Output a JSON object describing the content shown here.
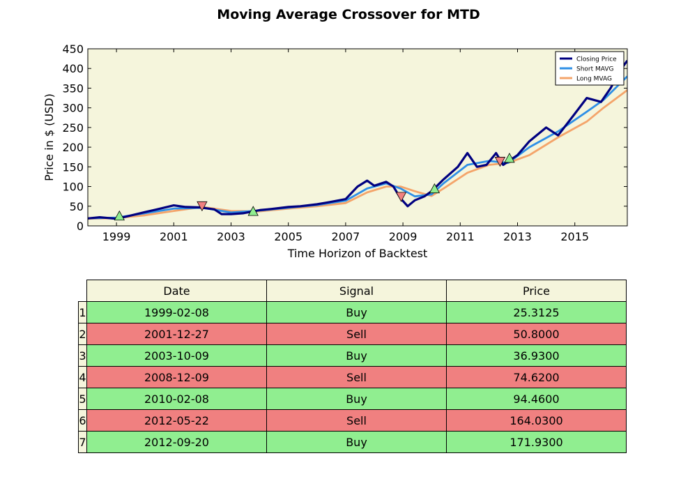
{
  "chart_data": [
    {
      "type": "line",
      "title": "Moving Average Crossover for MTD",
      "xlabel": "Time Horizon of Backtest",
      "ylabel": "Price in $ (USD)",
      "xlim": [
        "1998-01-01",
        "2016-10-31"
      ],
      "ylim": [
        0,
        450
      ],
      "x_ticks": [
        "1999",
        "2001",
        "2003",
        "2005",
        "2007",
        "2009",
        "2011",
        "2013",
        "2015"
      ],
      "y_ticks": [
        0,
        50,
        100,
        150,
        200,
        250,
        300,
        350,
        400,
        450
      ],
      "background": "#f5f5dc",
      "legend_position": "top-right",
      "series": [
        {
          "name": "Closing Price",
          "color": "#000080",
          "points": [
            [
              "1998-01-01",
              19
            ],
            [
              "1998-06-01",
              22
            ],
            [
              "1999-01-01",
              18
            ],
            [
              "1999-06-01",
              25
            ],
            [
              "2000-01-01",
              35
            ],
            [
              "2000-06-01",
              42
            ],
            [
              "2001-01-01",
              52
            ],
            [
              "2001-06-01",
              48
            ],
            [
              "2001-12-01",
              47
            ],
            [
              "2002-06-01",
              42
            ],
            [
              "2002-09-01",
              30
            ],
            [
              "2003-01-01",
              30
            ],
            [
              "2003-06-01",
              32
            ],
            [
              "2004-01-01",
              40
            ],
            [
              "2004-06-01",
              43
            ],
            [
              "2005-01-01",
              48
            ],
            [
              "2005-06-01",
              50
            ],
            [
              "2006-01-01",
              55
            ],
            [
              "2006-06-01",
              60
            ],
            [
              "2007-01-01",
              68
            ],
            [
              "2007-06-01",
              100
            ],
            [
              "2007-10-01",
              115
            ],
            [
              "2008-01-01",
              102
            ],
            [
              "2008-06-01",
              112
            ],
            [
              "2008-09-01",
              100
            ],
            [
              "2008-12-01",
              70
            ],
            [
              "2009-03-01",
              50
            ],
            [
              "2009-06-01",
              65
            ],
            [
              "2009-10-01",
              75
            ],
            [
              "2010-01-01",
              88
            ],
            [
              "2010-06-01",
              118
            ],
            [
              "2010-12-01",
              150
            ],
            [
              "2011-04-01",
              185
            ],
            [
              "2011-08-01",
              150
            ],
            [
              "2011-12-01",
              155
            ],
            [
              "2012-04-01",
              185
            ],
            [
              "2012-07-01",
              155
            ],
            [
              "2013-01-01",
              180
            ],
            [
              "2013-06-01",
              215
            ],
            [
              "2014-01-01",
              250
            ],
            [
              "2014-06-01",
              230
            ],
            [
              "2015-01-01",
              285
            ],
            [
              "2015-06-01",
              325
            ],
            [
              "2015-12-01",
              315
            ],
            [
              "2016-04-01",
              350
            ],
            [
              "2016-08-01",
              395
            ],
            [
              "2016-10-31",
              420
            ]
          ]
        },
        {
          "name": "Short MAVG",
          "color": "#2e8fe6",
          "points": [
            [
              "1998-01-01",
              19
            ],
            [
              "1999-01-01",
              21
            ],
            [
              "2000-01-01",
              32
            ],
            [
              "2001-01-01",
              44
            ],
            [
              "2002-01-01",
              46
            ],
            [
              "2003-01-01",
              34
            ],
            [
              "2004-01-01",
              39
            ],
            [
              "2005-01-01",
              46
            ],
            [
              "2006-01-01",
              53
            ],
            [
              "2007-01-01",
              64
            ],
            [
              "2007-10-01",
              95
            ],
            [
              "2008-06-01",
              108
            ],
            [
              "2008-12-01",
              95
            ],
            [
              "2009-06-01",
              75
            ],
            [
              "2010-01-01",
              80
            ],
            [
              "2010-06-01",
              108
            ],
            [
              "2011-04-01",
              155
            ],
            [
              "2012-01-01",
              165
            ],
            [
              "2012-09-01",
              160
            ],
            [
              "2013-06-01",
              200
            ],
            [
              "2014-06-01",
              240
            ],
            [
              "2015-06-01",
              290
            ],
            [
              "2016-01-01",
              320
            ],
            [
              "2016-10-31",
              380
            ]
          ]
        },
        {
          "name": "Long MVAG",
          "color": "#f4a46a",
          "points": [
            [
              "1998-01-01",
              18
            ],
            [
              "1999-01-01",
              20
            ],
            [
              "2000-01-01",
              27
            ],
            [
              "2001-01-01",
              38
            ],
            [
              "2002-01-01",
              48
            ],
            [
              "2003-01-01",
              38
            ],
            [
              "2004-01-01",
              37
            ],
            [
              "2005-01-01",
              44
            ],
            [
              "2006-01-01",
              50
            ],
            [
              "2007-01-01",
              58
            ],
            [
              "2007-10-01",
              85
            ],
            [
              "2008-06-01",
              100
            ],
            [
              "2008-12-01",
              100
            ],
            [
              "2009-06-01",
              88
            ],
            [
              "2010-01-01",
              76
            ],
            [
              "2010-06-01",
              95
            ],
            [
              "2011-04-01",
              135
            ],
            [
              "2012-01-01",
              155
            ],
            [
              "2012-09-01",
              160
            ],
            [
              "2013-06-01",
              180
            ],
            [
              "2014-06-01",
              225
            ],
            [
              "2015-06-01",
              265
            ],
            [
              "2016-01-01",
              300
            ],
            [
              "2016-10-31",
              345
            ]
          ]
        }
      ],
      "markers": [
        {
          "date": "1999-02-08",
          "price": 25.3125,
          "signal": "Buy",
          "color": "#90ee90"
        },
        {
          "date": "2001-12-27",
          "price": 50.8,
          "signal": "Sell",
          "color": "#f08080"
        },
        {
          "date": "2003-10-09",
          "price": 36.93,
          "signal": "Buy",
          "color": "#90ee90"
        },
        {
          "date": "2008-12-09",
          "price": 74.62,
          "signal": "Sell",
          "color": "#f08080"
        },
        {
          "date": "2010-02-08",
          "price": 94.46,
          "signal": "Buy",
          "color": "#90ee90"
        },
        {
          "date": "2012-05-22",
          "price": 164.03,
          "signal": "Sell",
          "color": "#f08080"
        },
        {
          "date": "2012-09-20",
          "price": 171.93,
          "signal": "Buy",
          "color": "#90ee90"
        }
      ]
    },
    {
      "type": "table",
      "columns": [
        "Date",
        "Signal",
        "Price"
      ],
      "header_color": "#f5f5dc",
      "buy_color": "#90ee90",
      "sell_color": "#f08080",
      "rows": [
        {
          "index": "1",
          "date": "1999-02-08",
          "signal": "Buy",
          "price": "25.3125"
        },
        {
          "index": "2",
          "date": "2001-12-27",
          "signal": "Sell",
          "price": "50.8000"
        },
        {
          "index": "3",
          "date": "2003-10-09",
          "signal": "Buy",
          "price": "36.9300"
        },
        {
          "index": "4",
          "date": "2008-12-09",
          "signal": "Sell",
          "price": "74.6200"
        },
        {
          "index": "5",
          "date": "2010-02-08",
          "signal": "Buy",
          "price": "94.4600"
        },
        {
          "index": "6",
          "date": "2012-05-22",
          "signal": "Sell",
          "price": "164.0300"
        },
        {
          "index": "7",
          "date": "2012-09-20",
          "signal": "Buy",
          "price": "171.9300"
        }
      ]
    }
  ]
}
